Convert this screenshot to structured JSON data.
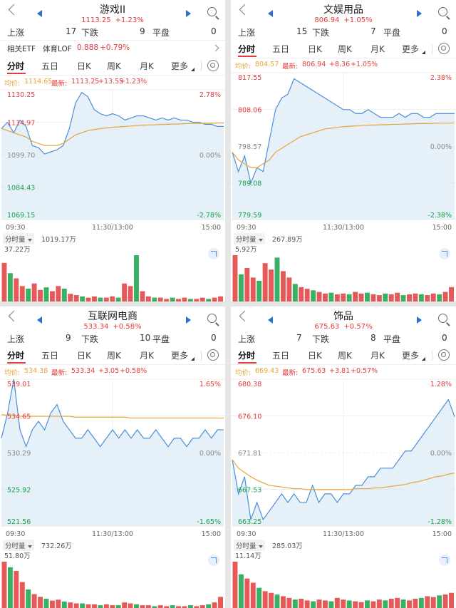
{
  "shared": {
    "rise_label": "上涨",
    "fall_label": "下跌",
    "flat_label": "平盘",
    "avg_prefix": "均价:",
    "latest_prefix": "最新:",
    "tabs": [
      "分时",
      "五日",
      "日K",
      "周K",
      "月K",
      "更多"
    ],
    "time_start": "09:30",
    "time_mid": "11:30/13:00",
    "time_end": "15:00",
    "volume_button": "分时量",
    "colors": {
      "up": "#e23c3c",
      "down": "#16a34a",
      "price_line": "#4a8fd8",
      "avg_line": "#e8a33a",
      "fill": "#dbe9f7",
      "accent": "#2a6fd6"
    },
    "icons": [
      "back-icon",
      "prev-arrow-icon",
      "next-arrow-icon",
      "search-icon",
      "gear-icon",
      "fullscreen-icon",
      "chevron-right-icon"
    ]
  },
  "panels": [
    {
      "title": "游戏II",
      "price": "1113.25",
      "change_pct": "+1.23%",
      "rise_count": "17",
      "fall_count": "9",
      "flat_count": "0",
      "etf": {
        "label": "相关ETF",
        "name": "体育LOF",
        "price": "0.888",
        "change": "+0.79%"
      },
      "avg_value": "1114.65",
      "latest_value": "1113.25",
      "latest_change": "+13.55",
      "latest_pct": "+1.23%",
      "left_axis": [
        "1130.25",
        "1114.97",
        "1099.70",
        "1084.43",
        "1069.15"
      ],
      "right_axis": [
        "2.78%",
        "",
        "0.00%",
        "",
        "-2.78%"
      ],
      "volume_total": "1019.17万",
      "volume_max": "37.22万",
      "chart_data": {
        "type": "line",
        "series": [
          {
            "values": [
              1112,
              1115,
              1110,
              1116,
              1113,
              1104,
              1103,
              1100,
              1101,
              1102,
              1104,
              1112,
              1124,
              1129,
              1127,
              1121,
              1119,
              1118,
              1119,
              1118,
              1116,
              1117,
              1118,
              1118,
              1117,
              1116,
              1117,
              1116,
              1117,
              1116,
              1116,
              1115,
              1115,
              1114,
              1114,
              1113,
              1113
            ]
          },
          {
            "values": [
              1112,
              1111,
              1110,
              1109,
              1108,
              1106,
              1105,
              1104,
              1104,
              1104,
              1105,
              1107,
              1109,
              1110,
              1111,
              1111.5,
              1112,
              1112.3,
              1112.6,
              1112.8,
              1113,
              1113.2,
              1113.4,
              1113.6,
              1113.7,
              1113.8,
              1113.9,
              1114,
              1114.1,
              1114.2,
              1114.3,
              1114.4,
              1114.4,
              1114.5,
              1114.5,
              1114.6,
              1114.65
            ]
          }
        ],
        "ylim": [
          1069.15,
          1130.25
        ]
      },
      "volume_data": [
        30,
        22,
        18,
        12,
        10,
        14,
        9,
        11,
        8,
        12,
        10,
        6,
        5,
        4,
        3,
        4,
        3,
        3,
        4,
        3,
        14,
        12,
        36,
        8,
        4,
        3,
        3,
        2,
        3,
        2,
        3,
        2,
        2,
        3,
        2,
        3,
        4
      ]
    },
    {
      "title": "文娱用品",
      "price": "806.94",
      "change_pct": "+1.05%",
      "rise_count": "15",
      "fall_count": "7",
      "flat_count": "0",
      "avg_value": "804.57",
      "latest_value": "806.94",
      "latest_change": "+8.36",
      "latest_pct": "+1.05%",
      "left_axis": [
        "817.55",
        "808.06",
        "798.57",
        "789.08",
        "779.59"
      ],
      "right_axis": [
        "2.38%",
        "",
        "0.00%",
        "",
        "-2.38%"
      ],
      "volume_total": "267.89万",
      "volume_max": "5.92万",
      "chart_data": {
        "type": "line",
        "series": [
          {
            "values": [
              797,
              792,
              796,
              789,
              793,
              792,
              800,
              808,
              811,
              812,
              816,
              815,
              814,
              813,
              812,
              811,
              810,
              809,
              808,
              808,
              807,
              807,
              808,
              807,
              806,
              806,
              806,
              807,
              806,
              807,
              807,
              806,
              806,
              807,
              807,
              807,
              807
            ]
          },
          {
            "values": [
              797,
              795,
              794,
              793,
              793,
              794,
              795,
              797,
              798,
              799,
              800,
              801,
              801.5,
              802,
              802.5,
              803,
              803.2,
              803.4,
              803.6,
              803.7,
              803.8,
              803.9,
              804,
              804,
              804.1,
              804.1,
              804.2,
              804.2,
              804.3,
              804.3,
              804.4,
              804.4,
              804.4,
              804.5,
              804.5,
              804.5,
              804.57
            ]
          }
        ],
        "ylim": [
          779.59,
          817.55
        ]
      },
      "volume_data": [
        58,
        34,
        42,
        30,
        26,
        48,
        40,
        55,
        38,
        30,
        22,
        18,
        16,
        14,
        12,
        10,
        11,
        9,
        10,
        9,
        12,
        10,
        11,
        9,
        8,
        10,
        9,
        11,
        8,
        9,
        10,
        9,
        8,
        10,
        9,
        12,
        18
      ]
    },
    {
      "title": "互联网电商",
      "price": "533.34",
      "change_pct": "+0.58%",
      "rise_count": "9",
      "fall_count": "10",
      "flat_count": "0",
      "avg_value": "534.38",
      "latest_value": "533.34",
      "latest_change": "+3.05",
      "latest_pct": "+0.58%",
      "left_axis": [
        "539.01",
        "534.65",
        "530.29",
        "525.92",
        "521.56"
      ],
      "right_axis": [
        "1.65%",
        "",
        "0.00%",
        "",
        "-1.65%"
      ],
      "volume_total": "732.26万",
      "volume_max": "51.80万",
      "chart_data": {
        "type": "line",
        "series": [
          {
            "values": [
              532,
              535,
              539,
              533,
              531,
              533,
              534,
              533,
              535,
              536,
              534,
              533,
              532,
              532,
              533,
              532,
              531,
              532,
              533,
              532,
              533,
              532,
              533,
              532,
              532,
              533,
              532,
              531,
              532,
              532,
              531,
              532,
              532,
              533,
              532,
              533,
              533
            ]
          },
          {
            "values": [
              534.8,
              534.7,
              534.7,
              534.6,
              534.6,
              534.6,
              534.6,
              534.6,
              534.6,
              534.6,
              534.6,
              534.6,
              534.5,
              534.5,
              534.5,
              534.5,
              534.5,
              534.5,
              534.5,
              534.5,
              534.5,
              534.4,
              534.4,
              534.4,
              534.4,
              534.4,
              534.4,
              534.4,
              534.4,
              534.4,
              534.4,
              534.4,
              534.4,
              534.4,
              534.4,
              534.4,
              534.38
            ]
          }
        ],
        "ylim": [
          521.56,
          539.01
        ]
      },
      "volume_data": [
        50,
        44,
        40,
        28,
        20,
        15,
        12,
        10,
        8,
        9,
        7,
        6,
        5,
        5,
        4,
        4,
        3,
        4,
        3,
        3,
        6,
        5,
        4,
        3,
        3,
        2,
        3,
        2,
        3,
        2,
        2,
        3,
        2,
        3,
        4,
        6,
        12
      ]
    },
    {
      "title": "饰品",
      "price": "675.63",
      "change_pct": "+0.57%",
      "rise_count": "7",
      "fall_count": "8",
      "flat_count": "0",
      "avg_value": "669.43",
      "latest_value": "675.63",
      "latest_change": "+3.81",
      "latest_pct": "+0.57%",
      "left_axis": [
        "680.38",
        "676.10",
        "671.81",
        "667.53",
        "663.25"
      ],
      "right_axis": [
        "1.28%",
        "",
        "0.00%",
        "",
        "-1.28%"
      ],
      "volume_total": "285.03万",
      "volume_max": "11.14万",
      "chart_data": {
        "type": "line",
        "series": [
          {
            "values": [
              671,
              667,
              669,
              664,
              666,
              664,
              665,
              666,
              667,
              666,
              667,
              666,
              666,
              668,
              666,
              667,
              667,
              666,
              667,
              667,
              668,
              668,
              669,
              669,
              670,
              670,
              670,
              671,
              672,
              672,
              673,
              674,
              675,
              676,
              677,
              678,
              676
            ]
          },
          {
            "values": [
              671,
              670,
              669.5,
              669,
              668.6,
              668.3,
              668,
              667.9,
              667.8,
              667.7,
              667.6,
              667.6,
              667.5,
              667.5,
              667.5,
              667.5,
              667.5,
              667.5,
              667.5,
              667.5,
              667.6,
              667.6,
              667.6,
              667.7,
              667.7,
              667.8,
              667.9,
              668,
              668.1,
              668.3,
              668.4,
              668.6,
              668.8,
              669,
              669.1,
              669.3,
              669.43
            ]
          }
        ],
        "ylim": [
          663.25,
          680.38
        ]
      },
      "volume_data": [
        55,
        40,
        35,
        30,
        24,
        20,
        18,
        16,
        14,
        12,
        10,
        11,
        9,
        8,
        10,
        9,
        8,
        12,
        10,
        9,
        8,
        7,
        9,
        8,
        10,
        9,
        11,
        12,
        10,
        9,
        11,
        12,
        14,
        13,
        15,
        16,
        18
      ]
    }
  ]
}
